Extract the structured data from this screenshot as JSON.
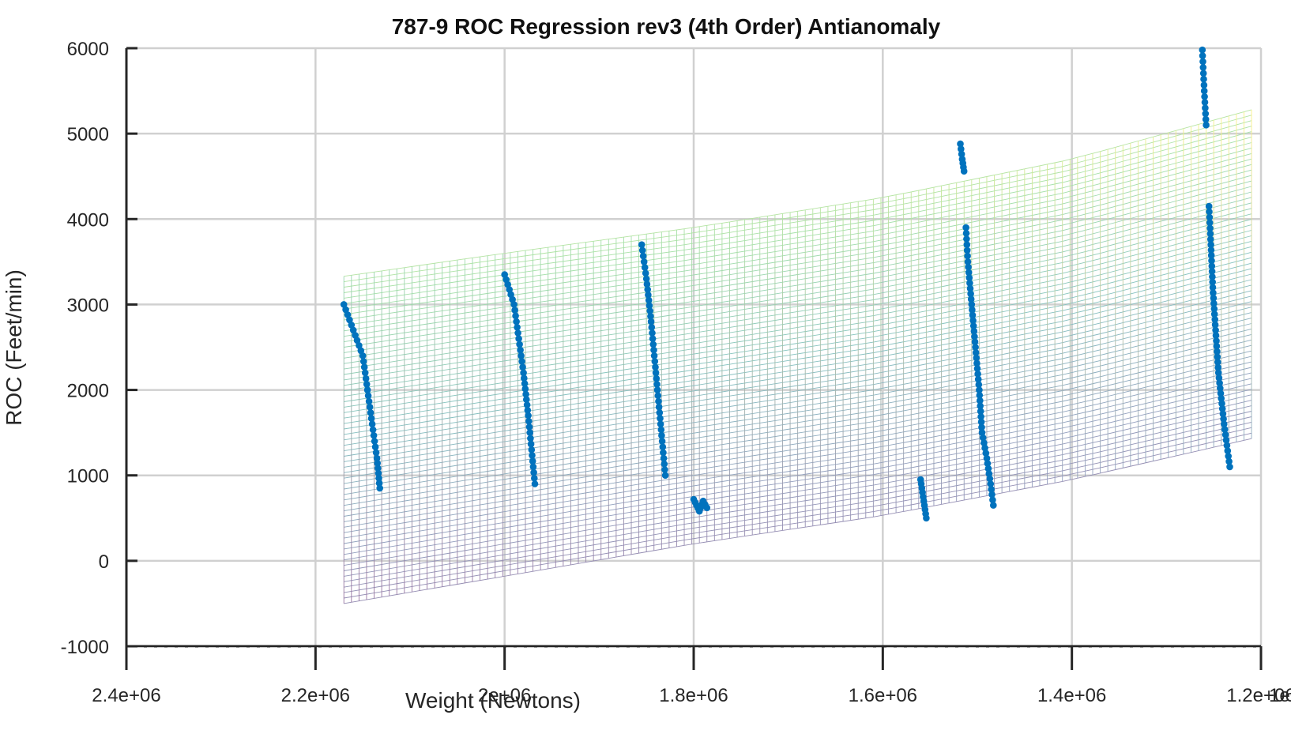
{
  "chart_data": {
    "type": "scatter",
    "title": "787-9 ROC Regression rev3 (4th Order) Antianomaly",
    "xlabel": "Weight (Newtons)",
    "ylabel": "ROC (Feet/min)",
    "xlim": [
      2400000,
      1200000
    ],
    "x_reversed": true,
    "ylim": [
      -1000,
      6000
    ],
    "grid": true,
    "x_ticks": [
      2400000,
      2200000,
      2000000,
      1800000,
      1600000,
      1400000,
      1200000
    ],
    "x_tick_labels": [
      "2.4e+06",
      "2.2e+06",
      "2e+06",
      "1.8e+06",
      "1.6e+06",
      "1.4e+06",
      "1.2e+06"
    ],
    "x_tick_overflow_label": "1e+06",
    "y_ticks": [
      -1000,
      0,
      1000,
      2000,
      3000,
      4000,
      5000,
      6000
    ],
    "y_tick_labels": [
      "-1000",
      "0",
      "1000",
      "2000",
      "3000",
      "4000",
      "5000",
      "6000"
    ],
    "surface": {
      "x_range": [
        2170000,
        1210000
      ],
      "top_edge": [
        [
          2170000,
          3330
        ],
        [
          2000000,
          3600
        ],
        [
          1800000,
          3900
        ],
        [
          1600000,
          4250
        ],
        [
          1400000,
          4700
        ],
        [
          1210000,
          5280
        ]
      ],
      "bottom_edge": [
        [
          2170000,
          -500
        ],
        [
          2000000,
          -180
        ],
        [
          1800000,
          200
        ],
        [
          1600000,
          530
        ],
        [
          1400000,
          950
        ],
        [
          1210000,
          1430
        ]
      ],
      "colormap": "viridis"
    },
    "marker_color": "#0072BD",
    "series": [
      {
        "segments": [
          {
            "x": [
              2170000,
              2160000,
              2150000,
              2145000,
              2140000,
              2135000,
              2132000
            ],
            "y": [
              3000,
              2700,
              2400,
              2000,
              1600,
              1200,
              850
            ]
          },
          {
            "x": [
              2000000,
              1990000,
              1985000,
              1980000,
              1975000,
              1968000
            ],
            "y": [
              3350,
              3000,
              2600,
              2200,
              1700,
              900
            ]
          },
          {
            "x": [
              1855000,
              1850000,
              1845000,
              1840000,
              1835000,
              1830000
            ],
            "y": [
              3700,
              3300,
              2800,
              2200,
              1600,
              1000
            ]
          },
          {
            "x": [
              1800000,
              1797000,
              1794000,
              1790000,
              1786000
            ],
            "y": [
              720,
              650,
              580,
              700,
              620
            ]
          },
          {
            "x": [
              1560000,
              1558000,
              1556000,
              1554000
            ],
            "y": [
              950,
              800,
              650,
              500
            ]
          },
          {
            "x": [
              1518000,
              1516000,
              1514000
            ],
            "y": [
              4880,
              4700,
              4560
            ]
          },
          {
            "x": [
              1512000,
              1510000,
              1506000,
              1502000,
              1498000,
              1495000,
              1490000,
              1486000,
              1483000
            ],
            "y": [
              3900,
              3500,
              3000,
              2500,
              2000,
              1500,
              1200,
              900,
              650
            ]
          },
          {
            "x": [
              1262000,
              1260000,
              1258000
            ],
            "y": [
              5980,
              5500,
              5100
            ]
          },
          {
            "x": [
              1255000,
              1253000,
              1251000,
              1248000,
              1245000,
              1242000,
              1239000,
              1236000,
              1233000
            ],
            "y": [
              4150,
              3700,
              3200,
              2700,
              2200,
              1900,
              1600,
              1350,
              1100
            ]
          }
        ]
      }
    ]
  }
}
